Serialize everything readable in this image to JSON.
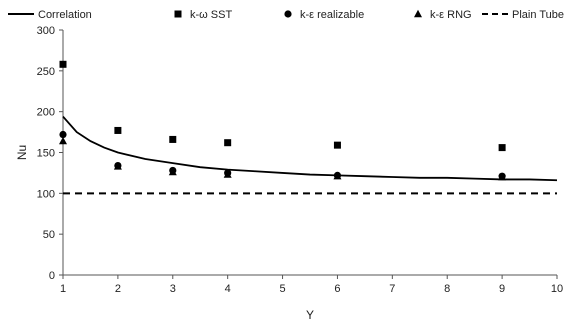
{
  "chart_data": {
    "type": "scatter",
    "xlabel": "Y",
    "ylabel": "Nu",
    "xlim": [
      1,
      10
    ],
    "ylim": [
      0,
      300
    ],
    "x_ticks": [
      "1",
      "2",
      "3",
      "4",
      "5",
      "6",
      "7",
      "8",
      "9",
      "10"
    ],
    "y_ticks": [
      "0",
      "50",
      "100",
      "150",
      "200",
      "250",
      "300"
    ],
    "legend_position": "top",
    "grid": false,
    "series": [
      {
        "name": "Correlation",
        "kind": "line",
        "style": "solid",
        "color": "#000000",
        "x": [
          1,
          1.25,
          1.5,
          1.75,
          2,
          2.5,
          3,
          3.5,
          4,
          4.5,
          5,
          5.5,
          6,
          6.5,
          7,
          7.5,
          8,
          8.5,
          9,
          9.5,
          10
        ],
        "y": [
          194,
          175,
          164,
          156,
          150,
          142,
          137,
          132,
          129,
          127,
          125,
          123,
          122,
          121,
          120,
          119,
          119,
          118,
          117,
          117,
          116
        ]
      },
      {
        "name": "k-ω SST",
        "kind": "markers",
        "marker": "square",
        "color": "#000000",
        "x": [
          1,
          2,
          3,
          4,
          6,
          9
        ],
        "y": [
          258,
          177,
          166,
          162,
          159,
          156
        ]
      },
      {
        "name": "k-ε realizable",
        "kind": "markers",
        "marker": "circle",
        "color": "#000000",
        "x": [
          1,
          2,
          3,
          4,
          6,
          9
        ],
        "y": [
          172,
          134,
          128,
          125,
          122,
          121
        ]
      },
      {
        "name": "k-ε RNG",
        "kind": "markers",
        "marker": "triangle",
        "color": "#000000",
        "x": [
          1,
          2,
          3,
          4,
          6,
          9
        ],
        "y": [
          164,
          133,
          126,
          123,
          121,
          120
        ]
      },
      {
        "name": "Plain Tube",
        "kind": "line",
        "style": "dashed",
        "color": "#000000",
        "x": [
          1,
          10
        ],
        "y": [
          100,
          100
        ]
      }
    ]
  }
}
